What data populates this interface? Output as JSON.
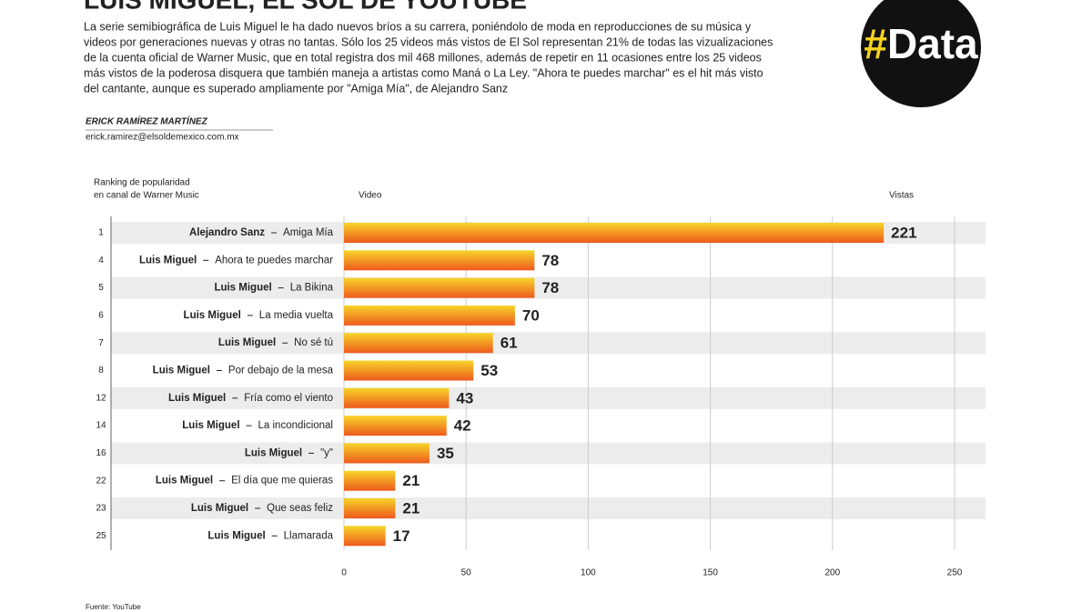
{
  "header": {
    "title": "LUIS MIGUEL, EL SOL DE YOUTUBE",
    "intro": [
      "La serie semibiográfica de Luis Miguel le ha dado nuevos bríos a su carrera, poniéndolo de moda en reproducciones de su música y",
      "videos por generaciones nuevas y otras no tantas. Sólo los 25 videos más vistos de El Sol representan 21% de todas las vizualizaciones",
      "de la cuenta oficial de Warner Music, que en total registra dos mil 468 millones, además de repetir en 11 ocasiones entre los 25 videos",
      "más vistos de la poderosa disquera que también maneja a artistas como Maná o La Ley. \"Ahora te puedes marchar\" es el hit más visto",
      "del cantante, aunque es superado ampliamente por \"Amiga Mía\", de Alejandro Sanz"
    ],
    "author": "ERICK RAMÍREZ MARTÍNEZ",
    "email": "erick.ramirez@elsoldemexico.com.mx",
    "logo_symbol": "#",
    "logo_word": "Data"
  },
  "footer": {
    "source": "Fuente: YouTube"
  },
  "chart_data": {
    "type": "bar",
    "orientation": "horizontal",
    "rank_header": [
      "Ranking de popularidad",
      "en canal de Warner Music"
    ],
    "category_header": "Video",
    "value_header": "Vistas",
    "ranks": [
      "1",
      "4",
      "5",
      "6",
      "7",
      "8",
      "12",
      "14",
      "16",
      "22",
      "23",
      "25"
    ],
    "artists": [
      "Alejandro Sanz",
      "Luis Miguel",
      "Luis Miguel",
      "Luis Miguel",
      "Luis Miguel",
      "Luis Miguel",
      "Luis Miguel",
      "Luis Miguel",
      "Luis Miguel",
      "Luis Miguel",
      "Luis Miguel",
      "Luis Miguel"
    ],
    "categories": [
      "Amiga Mía",
      "Ahora te puedes marchar",
      "La Bikina",
      "La media vuelta",
      "No sé tú",
      "Por debajo de la mesa",
      "Fría como el viento",
      "La incondicional",
      "\"y\"",
      "El día que me quieras",
      "Que seas feliz",
      "Llamarada"
    ],
    "values": [
      221,
      78,
      78,
      70,
      61,
      53,
      43,
      42,
      35,
      21,
      21,
      17
    ],
    "xlim": [
      0,
      250
    ],
    "xticks": [
      0,
      50,
      100,
      150,
      200,
      250
    ],
    "grid": true,
    "color_top": "#f7d52a",
    "color_bottom": "#ee5a1c"
  }
}
